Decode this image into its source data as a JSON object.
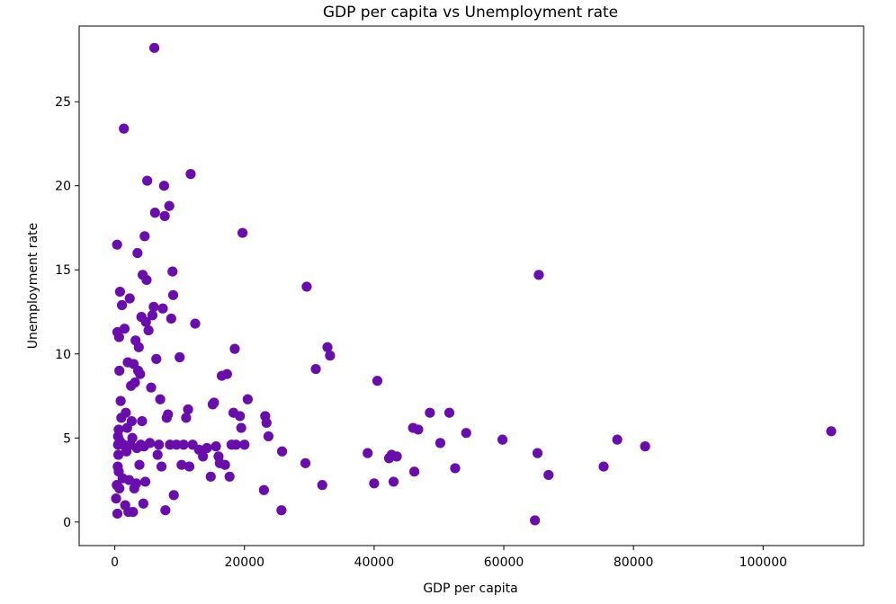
{
  "chart_data": {
    "type": "scatter",
    "title": "GDP per capita vs Unemployment rate",
    "xlabel": "GDP per capita",
    "ylabel": "Unemployment rate",
    "xlim": [
      -5500,
      115500
    ],
    "ylim": [
      -1.4,
      29.5
    ],
    "xticks": [
      0,
      20000,
      40000,
      60000,
      80000,
      100000
    ],
    "yticks": [
      0,
      5,
      10,
      15,
      20,
      25
    ],
    "grid": false,
    "marker_color": "#6a0dad",
    "points": [
      [
        200,
        1.4
      ],
      [
        300,
        2.2
      ],
      [
        400,
        0.5
      ],
      [
        450,
        3.3
      ],
      [
        500,
        5.1
      ],
      [
        550,
        4.0
      ],
      [
        600,
        3.0
      ],
      [
        650,
        11.0
      ],
      [
        700,
        9.0
      ],
      [
        800,
        13.7
      ],
      [
        350,
        16.5
      ],
      [
        400,
        11.3
      ],
      [
        500,
        4.6
      ],
      [
        600,
        5.5
      ],
      [
        700,
        2.0
      ],
      [
        800,
        4.8
      ],
      [
        900,
        7.2
      ],
      [
        1000,
        6.2
      ],
      [
        1100,
        12.9
      ],
      [
        1200,
        2.6
      ],
      [
        1300,
        4.6
      ],
      [
        1400,
        23.4
      ],
      [
        1500,
        11.5
      ],
      [
        1600,
        1.0
      ],
      [
        1700,
        6.5
      ],
      [
        1800,
        4.2
      ],
      [
        1900,
        5.6
      ],
      [
        2000,
        9.5
      ],
      [
        2100,
        0.6
      ],
      [
        2200,
        2.5
      ],
      [
        2300,
        13.3
      ],
      [
        2400,
        4.6
      ],
      [
        2500,
        8.1
      ],
      [
        2600,
        6.0
      ],
      [
        2700,
        5.0
      ],
      [
        2800,
        0.6
      ],
      [
        2900,
        9.4
      ],
      [
        3000,
        2.0
      ],
      [
        3100,
        8.3
      ],
      [
        3200,
        10.8
      ],
      [
        3300,
        2.3
      ],
      [
        3400,
        4.4
      ],
      [
        3500,
        16.0
      ],
      [
        3600,
        9.0
      ],
      [
        3700,
        10.4
      ],
      [
        3800,
        3.4
      ],
      [
        3900,
        8.8
      ],
      [
        4000,
        4.6
      ],
      [
        4100,
        12.2
      ],
      [
        4200,
        6.0
      ],
      [
        4300,
        14.7
      ],
      [
        4400,
        1.1
      ],
      [
        4500,
        4.5
      ],
      [
        4600,
        17.0
      ],
      [
        4700,
        2.4
      ],
      [
        4800,
        11.9
      ],
      [
        4900,
        14.4
      ],
      [
        5000,
        20.3
      ],
      [
        5200,
        11.4
      ],
      [
        5400,
        4.7
      ],
      [
        5600,
        8.0
      ],
      [
        5800,
        12.3
      ],
      [
        6000,
        12.8
      ],
      [
        6100,
        28.2
      ],
      [
        6200,
        18.4
      ],
      [
        6400,
        9.7
      ],
      [
        6600,
        4.0
      ],
      [
        6800,
        4.6
      ],
      [
        7000,
        7.3
      ],
      [
        7200,
        3.3
      ],
      [
        7400,
        12.7
      ],
      [
        7600,
        20.0
      ],
      [
        7700,
        18.2
      ],
      [
        7800,
        0.7
      ],
      [
        8000,
        6.2
      ],
      [
        8200,
        6.4
      ],
      [
        8400,
        18.8
      ],
      [
        8500,
        4.6
      ],
      [
        8700,
        12.1
      ],
      [
        8900,
        14.9
      ],
      [
        9000,
        13.5
      ],
      [
        9100,
        1.6
      ],
      [
        9500,
        4.6
      ],
      [
        10000,
        9.8
      ],
      [
        10300,
        3.4
      ],
      [
        10600,
        4.6
      ],
      [
        11000,
        6.2
      ],
      [
        11300,
        6.7
      ],
      [
        11500,
        3.3
      ],
      [
        11700,
        20.7
      ],
      [
        12000,
        4.6
      ],
      [
        12400,
        11.8
      ],
      [
        13000,
        4.3
      ],
      [
        13600,
        3.9
      ],
      [
        14200,
        4.4
      ],
      [
        14800,
        2.7
      ],
      [
        15100,
        7.0
      ],
      [
        15300,
        7.1
      ],
      [
        15600,
        4.5
      ],
      [
        16000,
        3.9
      ],
      [
        16200,
        3.5
      ],
      [
        16500,
        8.7
      ],
      [
        17000,
        3.4
      ],
      [
        17300,
        8.8
      ],
      [
        17700,
        2.7
      ],
      [
        18000,
        4.6
      ],
      [
        18300,
        6.5
      ],
      [
        18500,
        10.3
      ],
      [
        18700,
        4.6
      ],
      [
        19300,
        6.3
      ],
      [
        19500,
        5.6
      ],
      [
        19700,
        17.2
      ],
      [
        20000,
        4.6
      ],
      [
        20500,
        7.3
      ],
      [
        23000,
        1.9
      ],
      [
        23200,
        6.3
      ],
      [
        23400,
        5.9
      ],
      [
        23700,
        5.1
      ],
      [
        25700,
        0.7
      ],
      [
        25800,
        4.2
      ],
      [
        29400,
        3.5
      ],
      [
        29600,
        14.0
      ],
      [
        31000,
        9.1
      ],
      [
        32000,
        2.2
      ],
      [
        32800,
        10.4
      ],
      [
        33200,
        9.9
      ],
      [
        39000,
        4.1
      ],
      [
        40000,
        2.3
      ],
      [
        40500,
        8.4
      ],
      [
        42300,
        3.8
      ],
      [
        42700,
        4.0
      ],
      [
        43000,
        2.4
      ],
      [
        43500,
        3.9
      ],
      [
        46000,
        5.6
      ],
      [
        46200,
        3.0
      ],
      [
        46800,
        5.5
      ],
      [
        48600,
        6.5
      ],
      [
        50200,
        4.7
      ],
      [
        51600,
        6.5
      ],
      [
        52500,
        3.2
      ],
      [
        54200,
        5.3
      ],
      [
        59800,
        4.9
      ],
      [
        64800,
        0.1
      ],
      [
        65200,
        4.1
      ],
      [
        65400,
        14.7
      ],
      [
        66900,
        2.8
      ],
      [
        75400,
        3.3
      ],
      [
        77500,
        4.9
      ],
      [
        81800,
        4.5
      ],
      [
        110500,
        5.4
      ]
    ]
  }
}
